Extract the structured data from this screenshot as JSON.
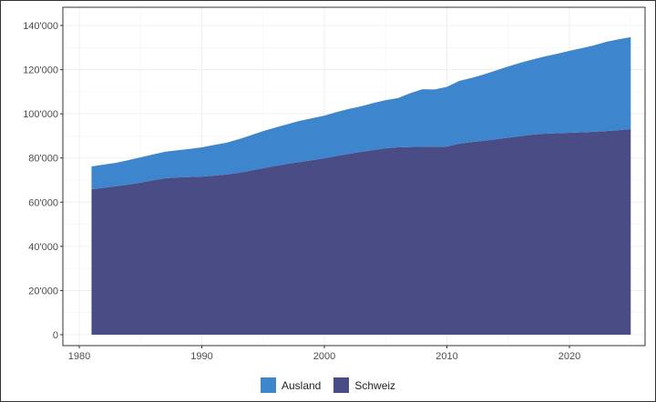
{
  "chart_data": {
    "type": "area",
    "stacked": true,
    "title": "",
    "xlabel": "",
    "ylabel": "",
    "xlim": [
      1979,
      2026
    ],
    "ylim": [
      0,
      140000
    ],
    "x_ticks": [
      1980,
      1990,
      2000,
      2010,
      2020
    ],
    "y_ticks": [
      0,
      20000,
      40000,
      60000,
      80000,
      100000,
      120000,
      140000
    ],
    "y_tick_labels": [
      "0",
      "20'000",
      "40'000",
      "60'000",
      "80'000",
      "100'000",
      "120'000",
      "140'000"
    ],
    "x_tick_labels": [
      "1980",
      "1990",
      "2000",
      "2010",
      "2020"
    ],
    "grid": true,
    "legend_position": "bottom",
    "x": [
      1981,
      1982,
      1983,
      1984,
      1985,
      1986,
      1987,
      1988,
      1989,
      1990,
      1991,
      1992,
      1993,
      1994,
      1995,
      1996,
      1997,
      1998,
      1999,
      2000,
      2001,
      2002,
      2003,
      2004,
      2005,
      2006,
      2007,
      2008,
      2009,
      2010,
      2011,
      2012,
      2013,
      2014,
      2015,
      2016,
      2017,
      2018,
      2019,
      2020,
      2021,
      2022,
      2023,
      2024,
      2025
    ],
    "series": [
      {
        "name": "Schweiz",
        "color": "#4a4d85",
        "values": [
          65900,
          66500,
          67200,
          68000,
          68800,
          69900,
          70800,
          71200,
          71400,
          71600,
          72000,
          72500,
          73300,
          74300,
          75400,
          76400,
          77400,
          78200,
          79000,
          79900,
          80900,
          81900,
          82800,
          83600,
          84400,
          84800,
          85000,
          85100,
          85100,
          85200,
          86500,
          87200,
          87800,
          88500,
          89200,
          89900,
          90600,
          91000,
          91200,
          91400,
          91600,
          91900,
          92200,
          92600,
          93100
        ]
      },
      {
        "name": "Ausland",
        "color": "#3d85cc",
        "values": [
          10300,
          10500,
          10600,
          11000,
          11500,
          11700,
          12000,
          12300,
          12700,
          13200,
          13900,
          14400,
          15200,
          16000,
          16800,
          17400,
          17900,
          18600,
          19000,
          19300,
          19900,
          20300,
          20600,
          21300,
          21800,
          22300,
          24300,
          26000,
          25900,
          27000,
          28400,
          29000,
          30000,
          31100,
          32200,
          33200,
          34000,
          35000,
          36000,
          37100,
          38100,
          39100,
          40400,
          41100,
          41600
        ]
      }
    ],
    "legend": [
      "Ausland",
      "Schweiz"
    ]
  }
}
